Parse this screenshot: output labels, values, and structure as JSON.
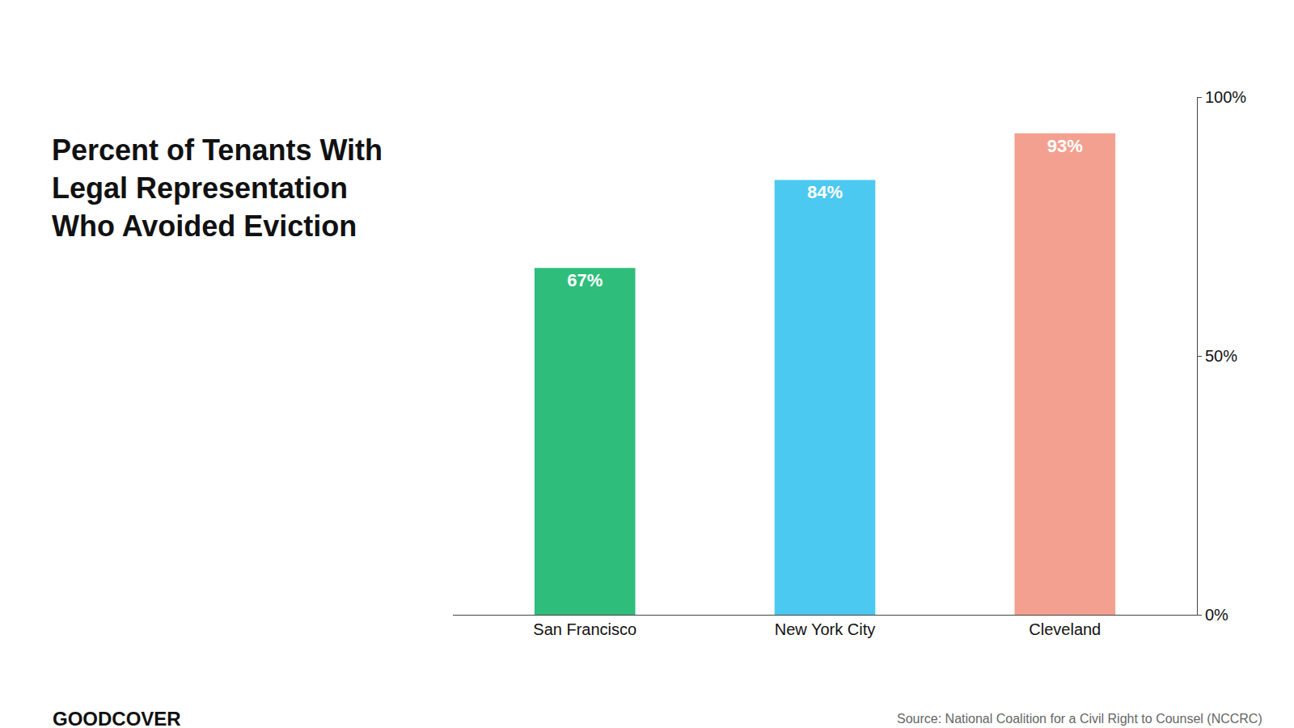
{
  "chart_data": {
    "type": "bar",
    "title": "Percent of Tenants With\nLegal Representation\nWho Avoided Eviction",
    "categories": [
      "San Francisco",
      "New York City",
      "Cleveland"
    ],
    "values": [
      67,
      84,
      93
    ],
    "value_labels": [
      "67%",
      "84%",
      "93%"
    ],
    "colors": [
      "#2ebd7b",
      "#4cc9f0",
      "#f4a090"
    ],
    "data_labels": true,
    "ylim": [
      0,
      100
    ],
    "yticks": [
      {
        "value": 0,
        "label": "0%"
      },
      {
        "value": 50,
        "label": "50%"
      },
      {
        "value": 100,
        "label": "100%"
      }
    ],
    "grid": false,
    "annotations": [
      "GOODCOVER",
      "Source: National Coalition for a Civil Right to Counsel (NCCRC)"
    ]
  }
}
